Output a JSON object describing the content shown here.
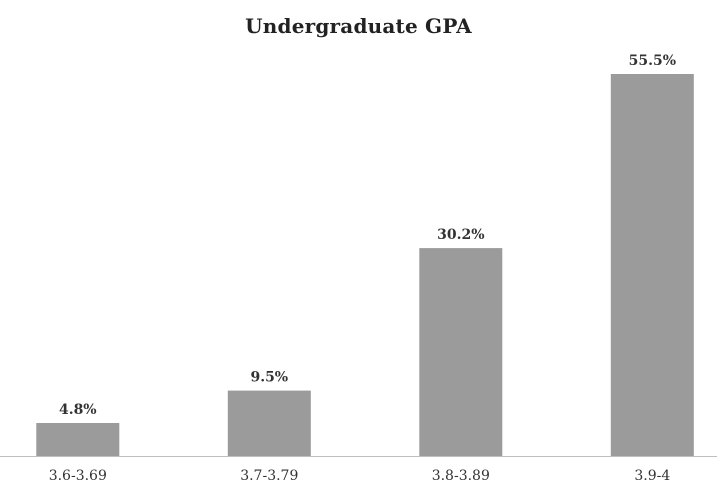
{
  "chart_data": {
    "type": "bar",
    "title": "Undergraduate GPA",
    "categories": [
      "3.6-3.69",
      "3.7-3.79",
      "3.8-3.89",
      "3.9-4"
    ],
    "values": [
      4.8,
      9.5,
      30.2,
      55.5
    ],
    "value_labels": [
      "4.8%",
      "9.5%",
      "30.2%",
      "55.5%"
    ],
    "xlabel": "",
    "ylabel": "",
    "ylim": [
      0,
      55.5
    ],
    "grid": false,
    "legend": "none",
    "bar_color": "#9b9b9b",
    "axis_color": "#bfbfbf",
    "label_color": "#333333"
  }
}
